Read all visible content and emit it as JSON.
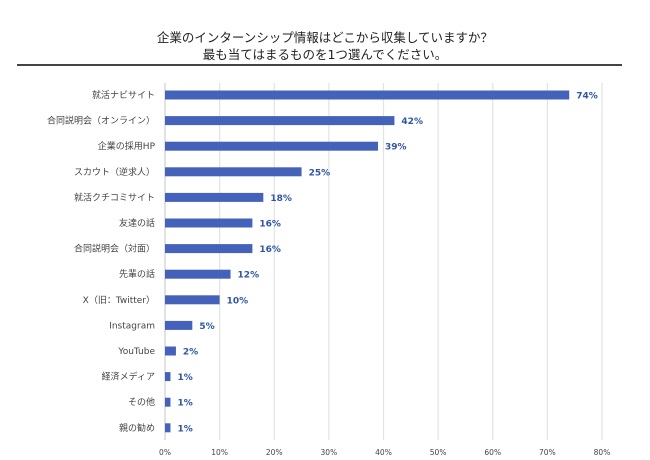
{
  "chart_data": {
    "type": "bar",
    "orientation": "horizontal",
    "title": [
      "企業のインターンシップ情報はどこから収集していますか？",
      "最も当てはまるものを1つ選んでください。"
    ],
    "categories": [
      "就活ナビサイト",
      "合同説明会（オンライン）",
      "企業の採用HP",
      "スカウト（逆求人）",
      "就活クチコミサイト",
      "友達の話",
      "合同説明会（対面）",
      "先輩の話",
      "X（旧：Twitter）",
      "Instagram",
      "YouTube",
      "経済メディア",
      "その他",
      "親の勧め"
    ],
    "values": [
      74,
      42,
      39,
      25,
      18,
      16,
      16,
      12,
      10,
      5,
      2,
      1,
      1,
      1
    ],
    "data_labels": [
      "74%",
      "42%",
      "39%",
      "25%",
      "18%",
      "16%",
      "16%",
      "12%",
      "10%",
      "5%",
      "2%",
      "1%",
      "1%",
      "1%"
    ],
    "xlim": [
      0,
      80
    ],
    "xticks": [
      "0%",
      "10%",
      "20%",
      "30%",
      "40%",
      "50%",
      "60%",
      "70%",
      "80%"
    ],
    "grid": true,
    "bar_color": "#4462b9",
    "label_color": "#2f55a4"
  }
}
